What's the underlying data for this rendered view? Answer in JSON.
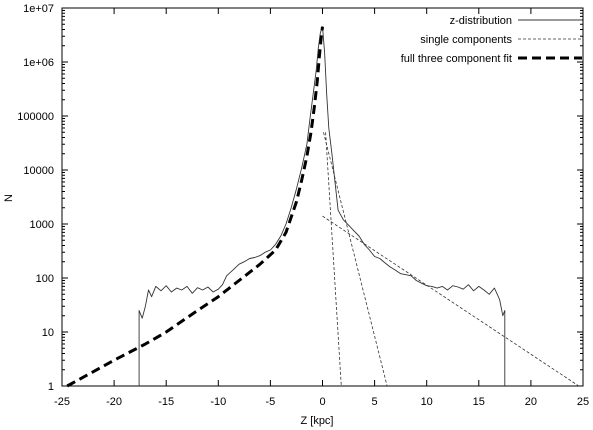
{
  "chart_data": {
    "type": "line",
    "title": "",
    "xlabel": "Z [kpc]",
    "ylabel": "N",
    "xlim": [
      -25,
      25
    ],
    "ylim": [
      1,
      10000000
    ],
    "yscale": "log",
    "grid": false,
    "legend_position": "top-right",
    "x_ticks": [
      -25,
      -20,
      -15,
      -10,
      -5,
      0,
      5,
      10,
      15,
      20,
      25
    ],
    "x_tick_labels": [
      "-25",
      "-20",
      "-15",
      "-10",
      "-5",
      "0",
      "5",
      "10",
      "15",
      "20",
      "25"
    ],
    "y_ticks": [
      1,
      10,
      100,
      1000,
      10000,
      100000,
      1000000,
      10000000
    ],
    "y_tick_labels": [
      "1",
      "10",
      "100",
      "1000",
      "10000",
      "100000",
      "1e+06",
      "1e+07"
    ],
    "series": [
      {
        "name": "z-distribution",
        "style": "solid-thin",
        "x": [
          -17.6,
          -17.6,
          -17.3,
          -17.0,
          -16.7,
          -16.4,
          -16.0,
          -15.5,
          -15.0,
          -14.5,
          -14.0,
          -13.5,
          -13.0,
          -12.5,
          -12.0,
          -11.5,
          -11.0,
          -10.5,
          -10.0,
          -9.6,
          -9.2,
          -8.6,
          -8.0,
          -7.5,
          -7.0,
          -6.5,
          -6.0,
          -5.5,
          -5.0,
          -4.5,
          -4.0,
          -3.5,
          -3.0,
          -2.5,
          -2.0,
          -1.5,
          -1.2,
          -0.9,
          -0.6,
          -0.4,
          -0.2,
          0.0,
          0.2,
          0.4,
          0.6,
          0.9,
          1.2,
          1.5,
          2.0,
          2.5,
          3.0,
          3.5,
          4.0,
          4.5,
          5.0,
          5.5,
          6.0,
          6.5,
          7.0,
          7.5,
          8.0,
          8.5,
          9.0,
          9.5,
          10.0,
          10.5,
          11.0,
          11.5,
          12.0,
          12.5,
          13.0,
          13.5,
          14.0,
          14.5,
          15.0,
          15.5,
          16.0,
          16.5,
          17.0,
          17.3,
          17.5,
          17.5
        ],
        "y": [
          1,
          25,
          18,
          30,
          60,
          45,
          70,
          58,
          72,
          55,
          65,
          60,
          70,
          52,
          66,
          60,
          68,
          55,
          62,
          75,
          110,
          140,
          180,
          200,
          230,
          240,
          260,
          300,
          330,
          420,
          600,
          1000,
          2000,
          4500,
          11000,
          30000,
          90000,
          250000,
          700000,
          1800000,
          3500000,
          4500000,
          1500000,
          250000,
          60000,
          20000,
          6000,
          1800,
          1200,
          950,
          750,
          600,
          420,
          330,
          250,
          230,
          190,
          160,
          140,
          120,
          115,
          110,
          90,
          80,
          72,
          70,
          65,
          70,
          60,
          72,
          68,
          62,
          75,
          58,
          70,
          60,
          50,
          65,
          40,
          20,
          25,
          1
        ]
      },
      {
        "name": "single components",
        "style": "dashed-thin",
        "lines": [
          {
            "x": [
              0.3,
              1.8
            ],
            "y": [
              50000,
              1
            ]
          },
          {
            "x": [
              0.1,
              6.2
            ],
            "y": [
              50000,
              1
            ]
          },
          {
            "x": [
              0.0,
              24.6
            ],
            "y": [
              1400,
              1
            ]
          }
        ]
      },
      {
        "name": "full three component fit",
        "style": "dashed-thick",
        "x": [
          -24.5,
          -20,
          -17,
          -15,
          -12,
          -10,
          -8,
          -6,
          -4.5,
          -3.5,
          -2.5,
          -2.0,
          -1.5,
          -1.1,
          -0.8,
          -0.5,
          -0.3,
          -0.1,
          0.0
        ],
        "y": [
          1,
          3,
          6,
          10,
          25,
          45,
          90,
          180,
          330,
          700,
          2600,
          6500,
          18000,
          50000,
          140000,
          450000,
          1300000,
          3200000,
          4500000
        ]
      }
    ]
  }
}
